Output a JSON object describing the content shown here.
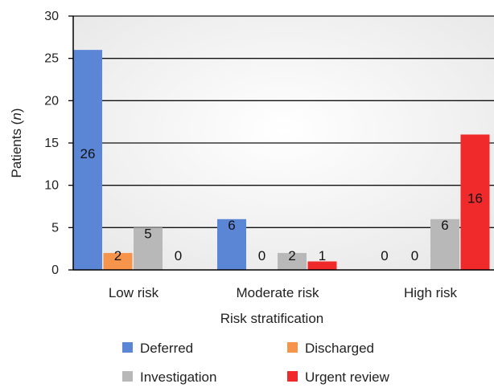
{
  "chart_data": {
    "type": "bar",
    "categories": [
      "Low risk",
      "Moderate risk",
      "High risk"
    ],
    "series": [
      {
        "name": "Deferred",
        "color": "#5b86d6",
        "values": [
          26,
          6,
          0
        ]
      },
      {
        "name": "Discharged",
        "color": "#f7944b",
        "values": [
          2,
          0,
          0
        ]
      },
      {
        "name": "Investigation",
        "color": "#b8b8b8",
        "values": [
          5,
          2,
          6
        ]
      },
      {
        "name": "Urgent review",
        "color": "#f02a2a",
        "values": [
          0,
          1,
          16
        ]
      }
    ],
    "xlabel": "Risk stratification",
    "ylabel_prefix": "Patients (",
    "ylabel_italic": "n",
    "ylabel_suffix": ")",
    "ylim": [
      0,
      30
    ],
    "yticks": [
      0,
      5,
      10,
      15,
      20,
      25,
      30
    ],
    "grid": true,
    "legend_position": "bottom",
    "data_labels": true
  }
}
